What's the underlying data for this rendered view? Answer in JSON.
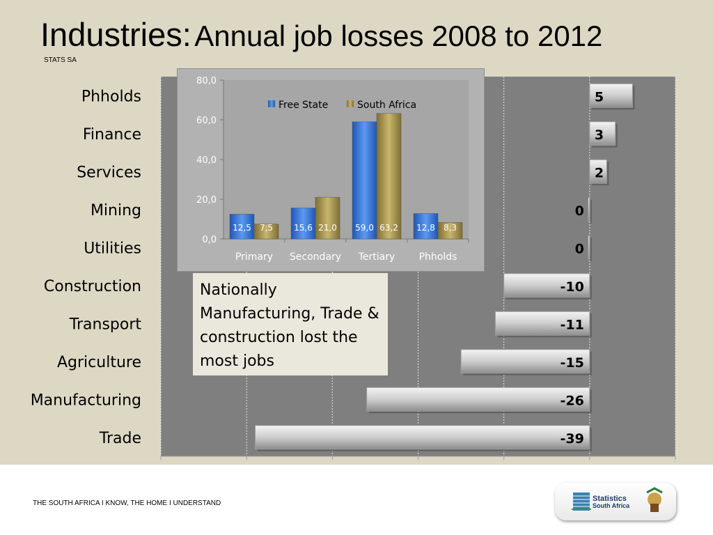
{
  "title": {
    "main": "Industries:",
    "sub": "Annual job losses 2008 to 2012"
  },
  "source": "STATS SA",
  "footer": {
    "tagline": "THE SOUTH AFRICA I KNOW, THE HOME I UNDERSTAND",
    "logo_line1": "Statistics",
    "logo_line2": "South Africa"
  },
  "note": "Nationally Manufacturing, Trade & construction lost the most jobs",
  "colors": {
    "background": "#ddd8c4",
    "plot": "#7f7f7f",
    "bar": "#c8c8c8",
    "free_state": "#3a78d8",
    "south_africa": "#a8944f"
  },
  "chart_data": [
    {
      "type": "bar",
      "orientation": "horizontal",
      "categories": [
        "Phholds",
        "Finance",
        "Services",
        "Mining",
        "Utilities",
        "Construction",
        "Transport",
        "Agriculture",
        "Manufacturing",
        "Trade"
      ],
      "values": [
        5,
        3,
        2,
        0,
        0,
        -10,
        -11,
        -15,
        -26,
        -39
      ],
      "xlim": [
        -50,
        10
      ],
      "grid": true
    },
    {
      "type": "bar",
      "categories": [
        "Primary",
        "Secondary",
        "Tertiary",
        "Phholds"
      ],
      "series": [
        {
          "name": "Free State",
          "values": [
            12.5,
            15.6,
            59.0,
            12.8
          ],
          "labels": [
            "12,5",
            "15,6",
            "59,0",
            "12,8"
          ]
        },
        {
          "name": "South Africa",
          "values": [
            7.5,
            21.0,
            63.2,
            8.3
          ],
          "labels": [
            "7,5",
            "21,0",
            "63,2",
            "8,3"
          ]
        }
      ],
      "yticks": [
        "0,0",
        "20,0",
        "40,0",
        "60,0",
        "80,0"
      ],
      "ylim": [
        0,
        80
      ],
      "legend": "top"
    }
  ]
}
